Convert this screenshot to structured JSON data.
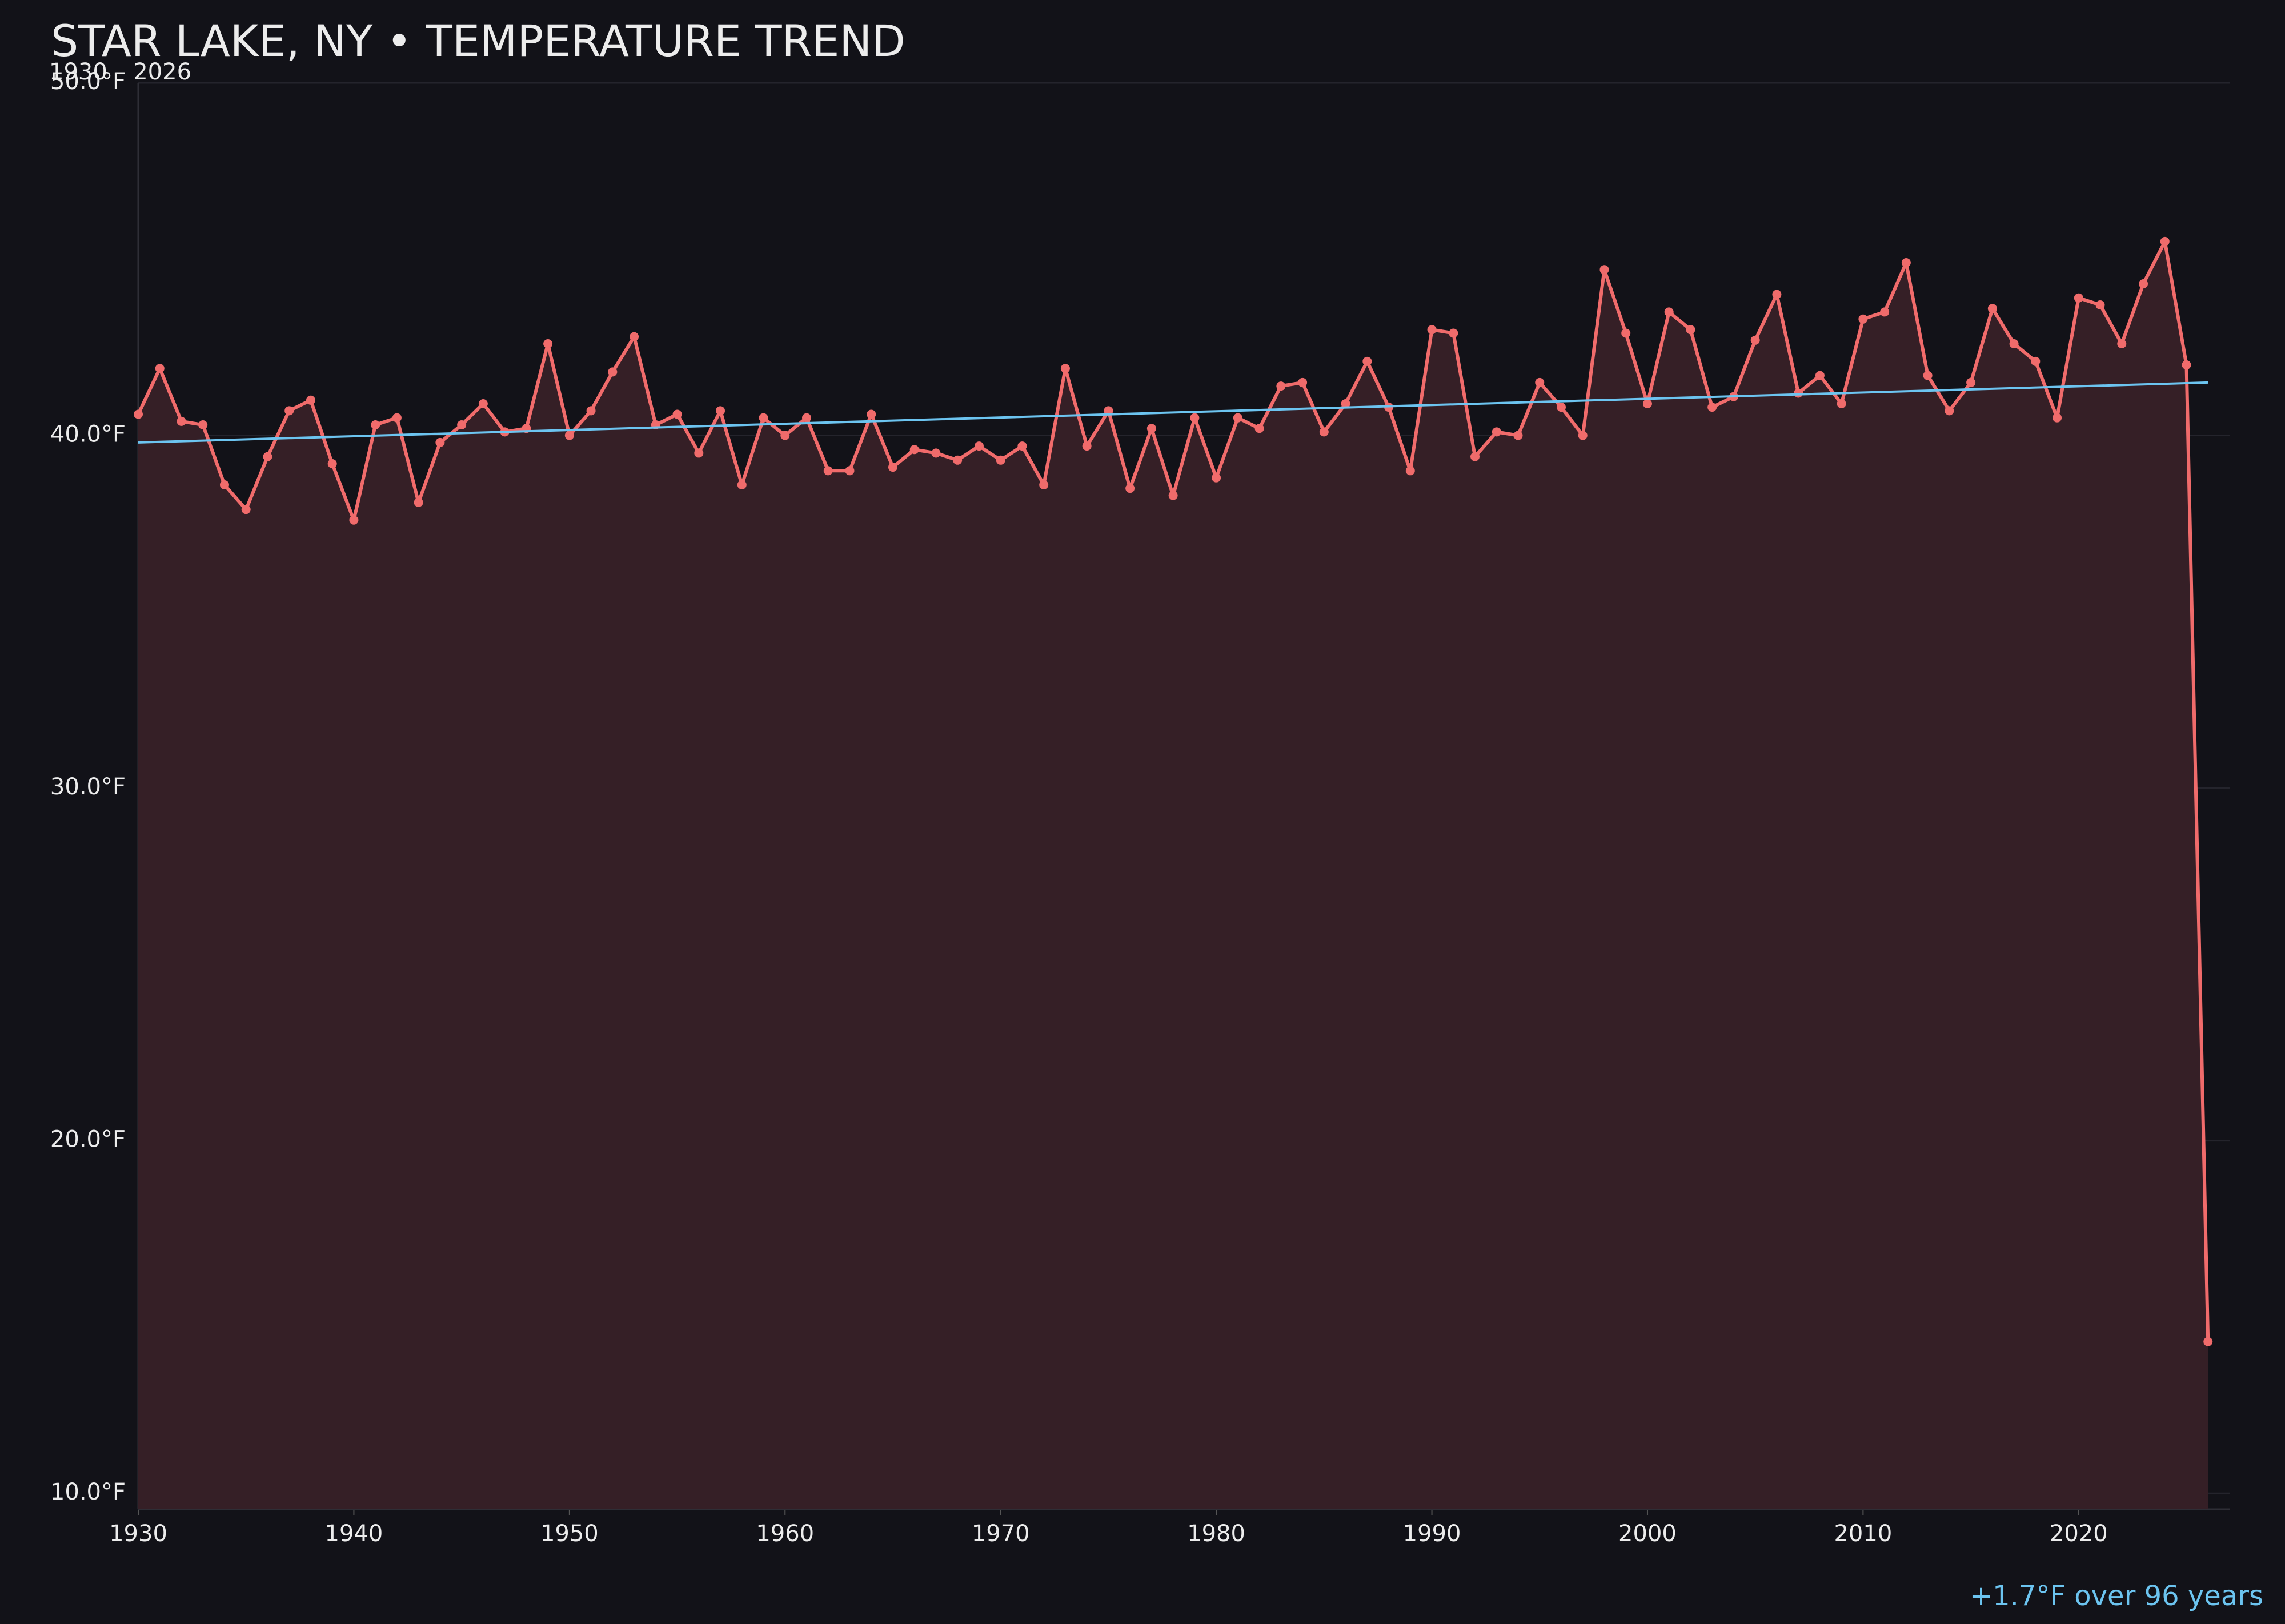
{
  "chart_data": {
    "type": "line",
    "title": "STAR LAKE, NY • TEMPERATURE TREND",
    "subtitle": "1930 – 2026",
    "annotation": "+1.7°F over 96 years",
    "x": [
      1930,
      1931,
      1932,
      1933,
      1934,
      1935,
      1936,
      1937,
      1938,
      1939,
      1940,
      1941,
      1942,
      1943,
      1944,
      1945,
      1946,
      1947,
      1948,
      1949,
      1950,
      1951,
      1952,
      1953,
      1954,
      1955,
      1956,
      1957,
      1958,
      1959,
      1960,
      1961,
      1962,
      1963,
      1964,
      1965,
      1966,
      1967,
      1968,
      1969,
      1970,
      1971,
      1972,
      1973,
      1974,
      1975,
      1976,
      1977,
      1978,
      1979,
      1980,
      1981,
      1982,
      1983,
      1984,
      1985,
      1986,
      1987,
      1988,
      1989,
      1990,
      1991,
      1992,
      1993,
      1994,
      1995,
      1996,
      1997,
      1998,
      1999,
      2000,
      2001,
      2002,
      2003,
      2004,
      2005,
      2006,
      2007,
      2008,
      2009,
      2010,
      2011,
      2012,
      2013,
      2014,
      2015,
      2016,
      2017,
      2018,
      2019,
      2020,
      2021,
      2022,
      2023,
      2024,
      2025,
      2026
    ],
    "series": [
      {
        "color": "#f06b6b",
        "fill": "#351f26",
        "values": [
          40.6,
          41.9,
          40.4,
          40.3,
          38.6,
          37.9,
          39.4,
          40.7,
          41.0,
          39.2,
          37.6,
          40.3,
          40.5,
          38.1,
          39.8,
          40.3,
          40.9,
          40.1,
          40.2,
          42.6,
          40.0,
          40.7,
          41.8,
          42.8,
          40.3,
          40.6,
          39.5,
          40.7,
          38.6,
          40.5,
          40.0,
          40.5,
          39.0,
          39.0,
          40.6,
          39.1,
          39.6,
          39.5,
          39.3,
          39.7,
          39.3,
          39.7,
          38.6,
          41.9,
          39.7,
          40.7,
          38.5,
          40.2,
          38.3,
          40.5,
          38.8,
          40.5,
          40.2,
          41.4,
          41.5,
          40.1,
          40.9,
          42.1,
          40.8,
          39.0,
          43.0,
          42.9,
          39.4,
          40.1,
          40.0,
          41.5,
          40.8,
          40.0,
          44.7,
          42.9,
          40.9,
          43.5,
          43.0,
          40.8,
          41.1,
          42.7,
          44.0,
          41.2,
          41.7,
          40.9,
          43.3,
          43.5,
          44.9,
          41.7,
          40.7,
          41.5,
          43.6,
          42.6,
          42.1,
          40.5,
          43.9,
          43.7,
          42.6,
          44.3,
          45.5,
          42.0,
          14.3
        ]
      }
    ],
    "trend": {
      "color": "#6cc4f0",
      "x": [
        1930,
        2026
      ],
      "values": [
        39.8,
        41.5
      ]
    },
    "xlim": [
      1930,
      2027
    ],
    "ylim": [
      9.55,
      50
    ],
    "xticks": [
      1930,
      1940,
      1950,
      1960,
      1970,
      1980,
      1990,
      2000,
      2010,
      2020
    ],
    "yticks": [
      {
        "value": 10,
        "label": "10.0°F"
      },
      {
        "value": 20,
        "label": "20.0°F"
      },
      {
        "value": 30,
        "label": "30.0°F"
      },
      {
        "value": 40,
        "label": "40.0°F"
      },
      {
        "value": 50,
        "label": "50.0°F"
      }
    ],
    "grid": true
  }
}
